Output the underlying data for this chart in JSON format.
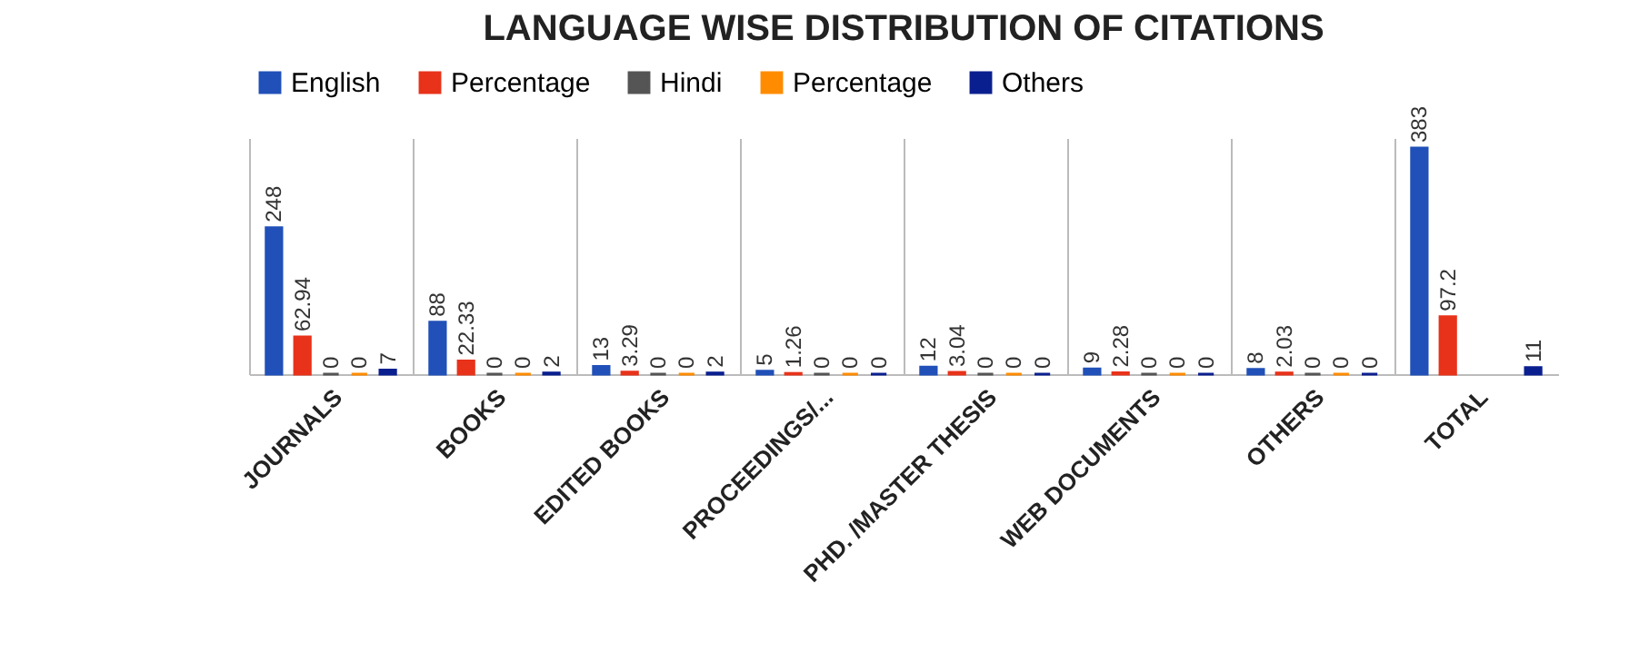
{
  "chart_data": {
    "type": "bar",
    "title": "LANGUAGE WISE DISTRIBUTION  OF CITATIONS",
    "categories": [
      "JOURNALS",
      "BOOKS",
      "EDITED BOOKS",
      "PROCEEDINGS/...",
      "PHD. /MASTER THESIS",
      "WEB DOCUMENTS",
      "OTHERS",
      "TOTAL"
    ],
    "series": [
      {
        "name": "English",
        "color": "#2050b8",
        "values": [
          248,
          88,
          13,
          5,
          12,
          9,
          8,
          383
        ]
      },
      {
        "name": "Percentage",
        "color": "#e8321a",
        "values": [
          62.94,
          22.33,
          3.29,
          1.26,
          3.04,
          2.28,
          2.03,
          97.2
        ]
      },
      {
        "name": "Hindi",
        "color": "#555555",
        "values": [
          0,
          0,
          0,
          0,
          0,
          0,
          0,
          null
        ]
      },
      {
        "name": "Percentage",
        "color": "#ff8c00",
        "values": [
          0,
          0,
          0,
          0,
          0,
          0,
          0,
          null
        ]
      },
      {
        "name": "Others",
        "color": "#0a1f8f",
        "values": [
          7,
          2,
          2,
          0,
          0,
          0,
          0,
          11
        ]
      }
    ],
    "data_labels": true,
    "grid": "x",
    "legend": "top"
  }
}
